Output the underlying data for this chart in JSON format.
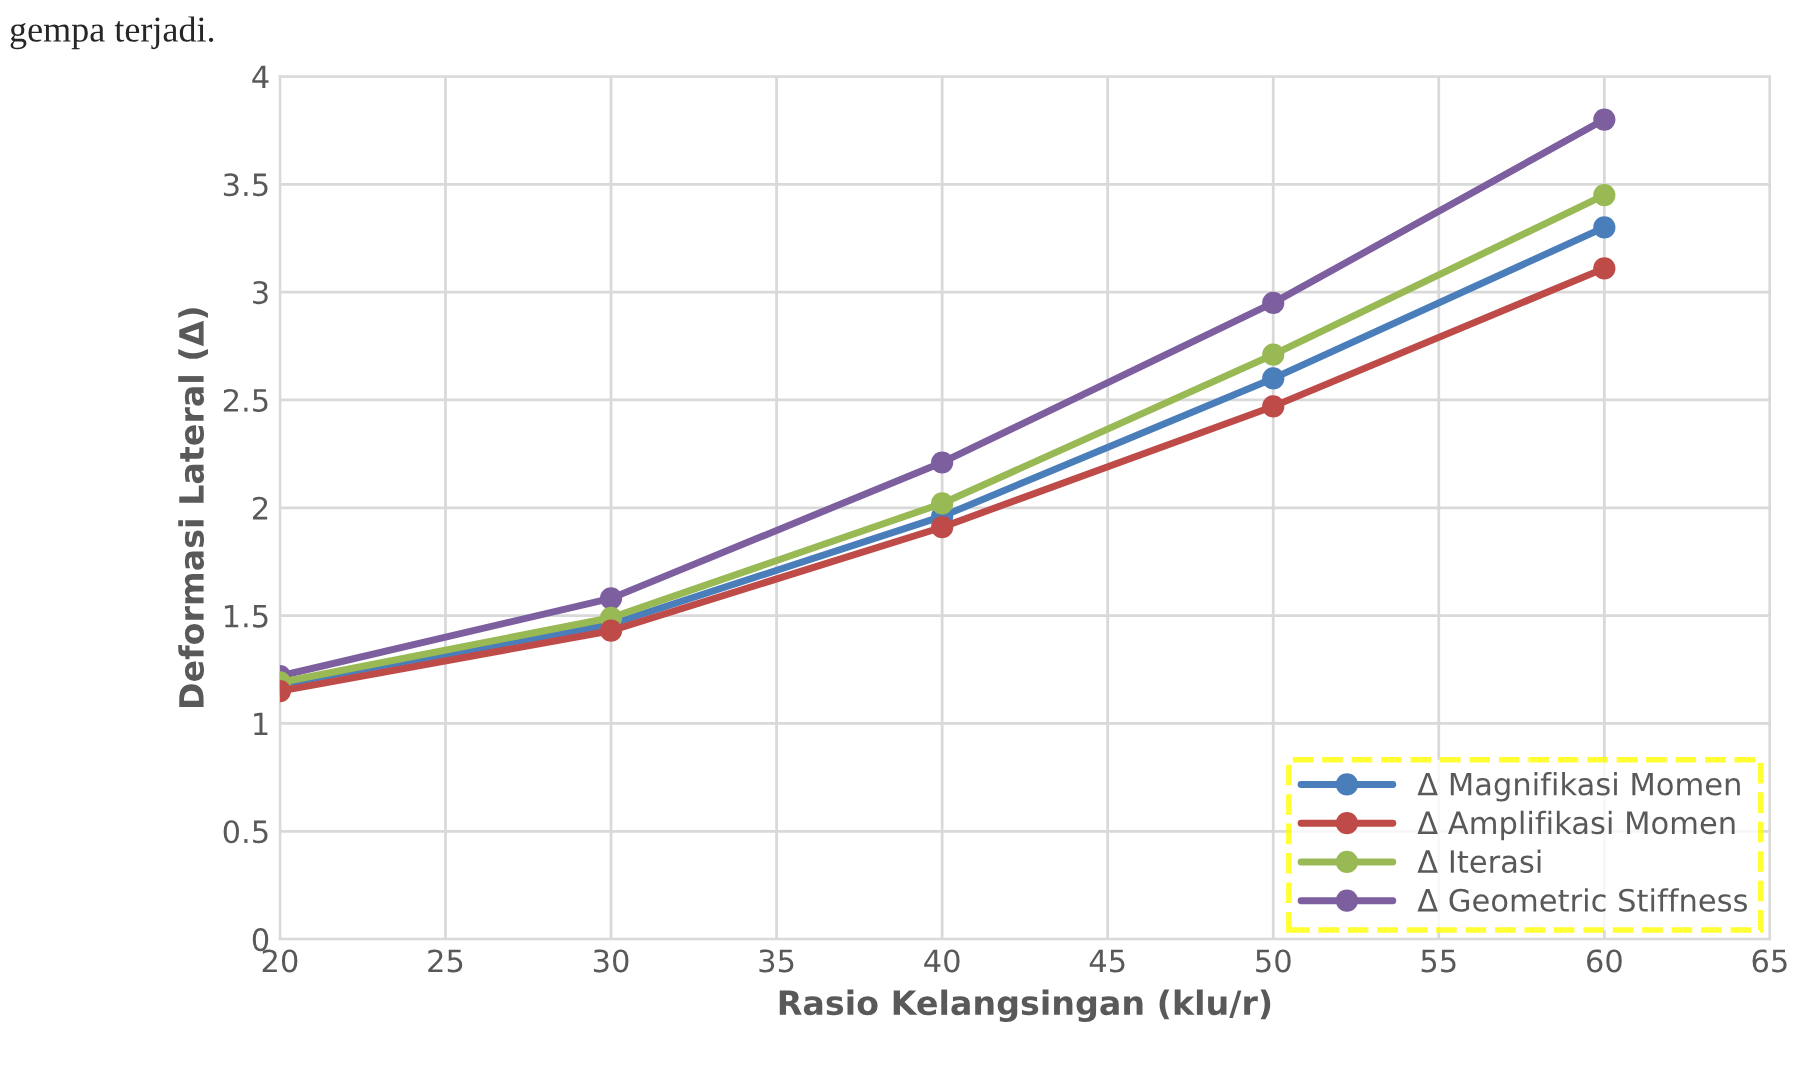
{
  "chart_data": {
    "type": "line",
    "xlabel": "Rasio Kelangsingan (klu/r)",
    "ylabel": "Deformasi Lateral (Δ)",
    "annotations": [
      "gempa terjadi."
    ],
    "x": [
      20,
      30,
      40,
      50,
      60
    ],
    "series": [
      {
        "name": "Δ Magnifikasi Momen",
        "color": "#4a7ebb",
        "values": [
          1.18,
          1.46,
          1.96,
          2.6,
          3.3
        ]
      },
      {
        "name": "Δ Amplifikasi Momen",
        "color": "#be4b48",
        "values": [
          1.15,
          1.43,
          1.91,
          2.47,
          3.11
        ]
      },
      {
        "name": "Δ Iterasi",
        "color": "#98b954",
        "values": [
          1.19,
          1.49,
          2.02,
          2.71,
          3.45
        ]
      },
      {
        "name": "Δ Geometric Stiffness",
        "color": "#7d5fa0",
        "values": [
          1.22,
          1.58,
          2.21,
          2.95,
          3.8
        ]
      }
    ],
    "xlim": [
      20,
      65
    ],
    "xticks": [
      20,
      25,
      30,
      35,
      40,
      45,
      50,
      55,
      60,
      65
    ],
    "ylim": [
      0,
      4
    ],
    "yticks": [
      0,
      0.5,
      1,
      1.5,
      2,
      2.5,
      3,
      3.5,
      4
    ],
    "grid": true,
    "legend": "bottom right",
    "marker": "circle",
    "line_style": "solid"
  }
}
